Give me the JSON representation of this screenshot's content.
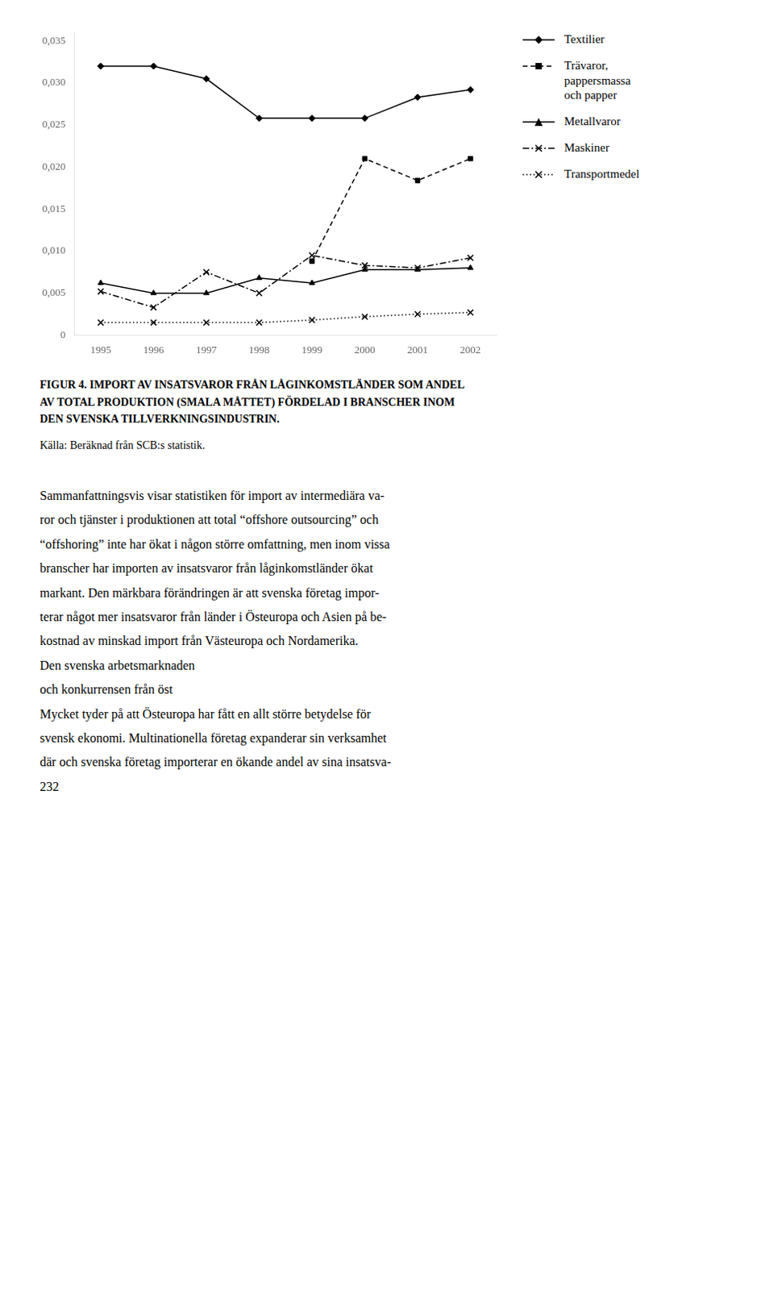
{
  "chart_data": {
    "type": "line",
    "title": [
      "FIGUR 4. IMPORT AV INSATSVAROR FRÅN LÅGINKOMSTLÄNDER SOM ANDEL",
      "AV TOTAL PRODUKTION (SMALA MÅTTET) FÖRDELAD I BRANSCHER INOM",
      "DEN SVENSKA TILLVERKNINGSINDUSTRIN."
    ],
    "subtitle": "Källa: Beräknad från SCB:s statistik.",
    "x": [
      1995,
      1996,
      1997,
      1998,
      1999,
      2000,
      2001,
      2002
    ],
    "series": [
      {
        "name": "Textilier",
        "color": "#000000",
        "marker": "diamond",
        "line_style": "solid",
        "values": [
          0.032,
          0.032,
          0.0305,
          0.0258,
          0.0258,
          0.0258,
          0.0283,
          0.0292
        ]
      },
      {
        "name": "Trävaror,\npappersmassa\noch papper",
        "color": "#000000",
        "marker": "square",
        "line_style": "dashed",
        "values": [
          null,
          null,
          null,
          null,
          0.0088,
          0.021,
          0.0184,
          0.021
        ]
      },
      {
        "name": "Metallvaror",
        "color": "#000000",
        "marker": "triangle",
        "line_style": "solid",
        "values": [
          0.0062,
          0.005,
          0.005,
          0.0068,
          0.0062,
          0.0078,
          0.0078,
          0.008
        ]
      },
      {
        "name": "Maskiner",
        "color": "#000000",
        "marker": "x",
        "line_style": "dashdot",
        "values": [
          0.0052,
          0.0033,
          0.0075,
          0.005,
          0.0095,
          0.0083,
          0.008,
          0.0092
        ]
      },
      {
        "name": "Transportmedel",
        "color": "#000000",
        "marker": "x",
        "line_style": "dotted",
        "values": [
          0.0015,
          0.0015,
          0.0015,
          0.0015,
          0.0018,
          0.0022,
          0.0025,
          0.0027
        ]
      }
    ],
    "xlim": [
      1994.5,
      2002.5
    ],
    "xticks": [
      1995,
      1996,
      1997,
      1998,
      1999,
      2000,
      2001,
      2002
    ],
    "ylim": [
      0,
      0.036
    ],
    "yticks": [
      0,
      {
        "value": 0.005,
        "label": "0,005"
      },
      {
        "value": 0.01,
        "label": "0,010"
      },
      {
        "value": 0.015,
        "label": "0,015"
      },
      {
        "value": 0.02,
        "label": "0,020"
      },
      {
        "value": 0.025,
        "label": "0,025"
      },
      {
        "value": 0.03,
        "label": "0,030"
      },
      {
        "value": 0.035,
        "label": "0,035"
      }
    ],
    "grid": false,
    "legend": "right",
    "annotations": [
      "Sammanfattningsvis visar statistiken för import av intermediära va-",
      "ror och tjänster i produktionen att total “offshore outsourcing” och",
      "“offshoring” inte har ökat i någon större omfattning, men inom vissa",
      "branscher har importen av insatsvaror från låginkomstländer ökat",
      "markant. Den märkbara förändringen är att svenska företag impor-",
      "terar något mer insatsvaror från länder i Östeuropa och Asien på be-",
      "kostnad av minskad import från Västeuropa och Nordamerika.",
      "Den svenska arbetsmarknaden",
      "och konkurrensen från öst",
      "Mycket tyder på att Östeuropa har fått en allt större betydelse för",
      "svensk ekonomi. Multinationella företag expanderar sin verksamhet",
      "där och svenska företag importerar en ökande andel av sina insatsva-",
      "232"
    ]
  }
}
